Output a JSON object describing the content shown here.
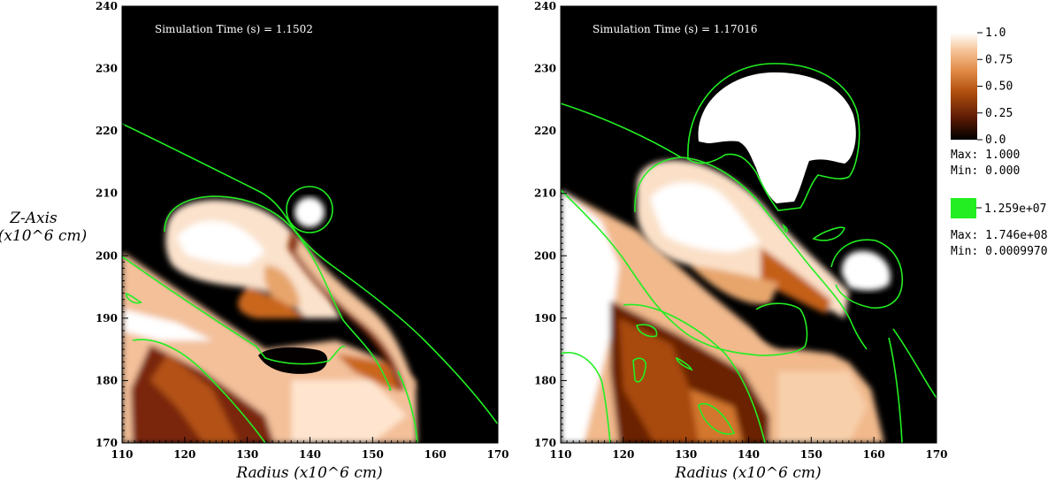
{
  "colors": {
    "background": "#000000",
    "contour": "#22ee22",
    "colormap": [
      "#000000",
      "#5a1a04",
      "#b2500f",
      "#e38c48",
      "#f7c9a1",
      "#ffffff"
    ]
  },
  "y_axis_title": {
    "line1": "Z-Axis",
    "line2": "(x10^6 cm)"
  },
  "chart_data": [
    {
      "type": "heatmap",
      "annotation": "Simulation Time (s) = 1.1502",
      "xlabel": "Radius (x10^6 cm)",
      "xlim": [
        110,
        170
      ],
      "ylim": [
        170,
        240
      ],
      "x_ticks": [
        "110",
        "120",
        "130",
        "140",
        "150",
        "160",
        "170"
      ],
      "y_ticks": [
        "170",
        "180",
        "190",
        "200",
        "210",
        "220",
        "230",
        "240"
      ],
      "grid": false
    },
    {
      "type": "heatmap",
      "annotation": "Simulation Time (s) = 1.17016",
      "xlabel": "Radius (x10^6 cm)",
      "xlim": [
        110,
        170
      ],
      "ylim": [
        170,
        240
      ],
      "x_ticks": [
        "110",
        "120",
        "130",
        "140",
        "150",
        "160",
        "170"
      ],
      "y_ticks": [
        "170",
        "180",
        "190",
        "200",
        "210",
        "220",
        "230",
        "240"
      ],
      "grid": false
    }
  ],
  "legend": {
    "colorbar": {
      "ticks": [
        "1.0",
        "0.75",
        "0.50",
        "0.25",
        "0.0"
      ],
      "max": "Max:  1.000",
      "min": "Min:  0.000"
    },
    "contour": {
      "level": "1.259e+07",
      "max": "Max:  1.746e+08",
      "min": "Min:  0.0009970"
    }
  }
}
